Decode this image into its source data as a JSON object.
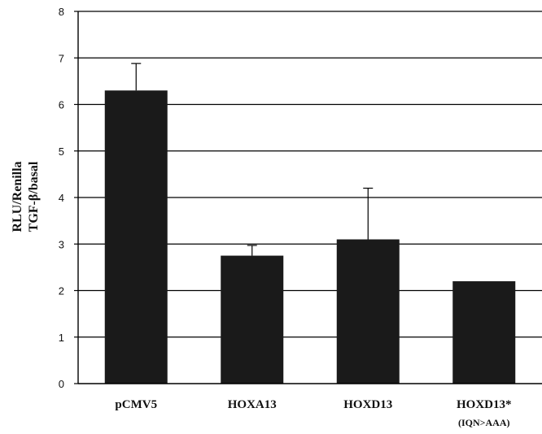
{
  "chart_data": {
    "type": "bar",
    "categories": [
      "pCMV5",
      "HOXA13",
      "HOXD13",
      "HOXD13*"
    ],
    "category_sublabels": [
      "",
      "",
      "",
      "(IQN>AAA)"
    ],
    "values": [
      6.3,
      2.75,
      3.1,
      2.2
    ],
    "error_plus": [
      0.58,
      0.22,
      1.1,
      0
    ],
    "ylabel_line1": "RLU/Renilla",
    "ylabel_line2": "TGF-β/basal",
    "ylim": [
      0,
      8
    ],
    "yticks": [
      "0",
      "1",
      "2",
      "3",
      "4",
      "5",
      "6",
      "7",
      "8"
    ],
    "grid": true,
    "bar_color": "#1a1a1a"
  }
}
